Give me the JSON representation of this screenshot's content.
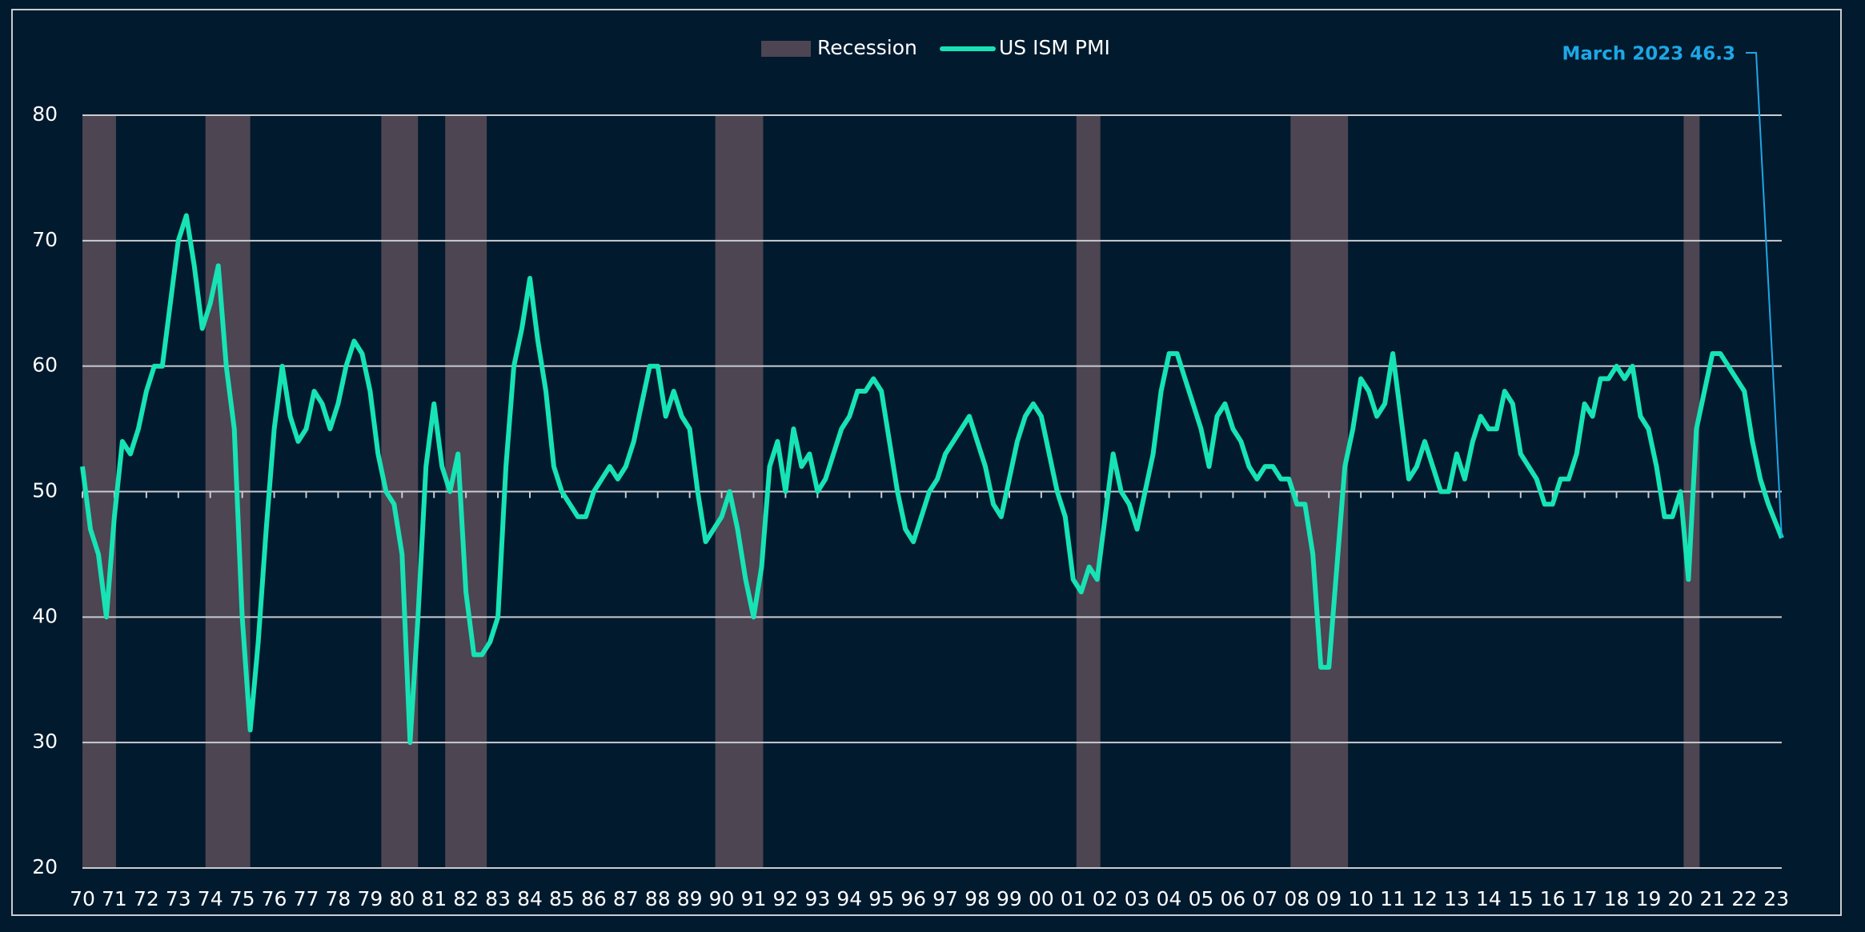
{
  "chart_data": {
    "type": "line",
    "legend_position": "top",
    "recession": {
      "name": "Recession",
      "color": "#4d4552",
      "periods": [
        [
          1970.0,
          1971.05
        ],
        [
          1973.85,
          1975.25
        ],
        [
          1979.35,
          1980.5
        ],
        [
          1981.35,
          1982.65
        ],
        [
          1989.8,
          1991.3
        ],
        [
          2001.1,
          2001.85
        ],
        [
          2007.8,
          2009.6
        ],
        [
          2020.1,
          2020.6
        ]
      ]
    },
    "annotation": {
      "text": "March 2023 46.3",
      "color": "#1ea7e6"
    },
    "x": [
      1970,
      1970.25,
      1970.5,
      1970.75,
      1971,
      1971.25,
      1971.5,
      1971.75,
      1972,
      1972.25,
      1972.5,
      1972.75,
      1973,
      1973.25,
      1973.5,
      1973.75,
      1974,
      1974.25,
      1974.5,
      1974.75,
      1975,
      1975.25,
      1975.5,
      1975.75,
      1976,
      1976.25,
      1976.5,
      1976.75,
      1977,
      1977.25,
      1977.5,
      1977.75,
      1978,
      1978.25,
      1978.5,
      1978.75,
      1979,
      1979.25,
      1979.5,
      1979.75,
      1980,
      1980.25,
      1980.5,
      1980.75,
      1981,
      1981.25,
      1981.5,
      1981.75,
      1982,
      1982.25,
      1982.5,
      1982.75,
      1983,
      1983.25,
      1983.5,
      1983.75,
      1984,
      1984.25,
      1984.5,
      1984.75,
      1985,
      1985.25,
      1985.5,
      1985.75,
      1986,
      1986.25,
      1986.5,
      1986.75,
      1987,
      1987.25,
      1987.5,
      1987.75,
      1988,
      1988.25,
      1988.5,
      1988.75,
      1989,
      1989.25,
      1989.5,
      1989.75,
      1990,
      1990.25,
      1990.5,
      1990.75,
      1991,
      1991.25,
      1991.5,
      1991.75,
      1992,
      1992.25,
      1992.5,
      1992.75,
      1993,
      1993.25,
      1993.5,
      1993.75,
      1994,
      1994.25,
      1994.5,
      1994.75,
      1995,
      1995.25,
      1995.5,
      1995.75,
      1996,
      1996.25,
      1996.5,
      1996.75,
      1997,
      1997.25,
      1997.5,
      1997.75,
      1998,
      1998.25,
      1998.5,
      1998.75,
      1999,
      1999.25,
      1999.5,
      1999.75,
      2000,
      2000.25,
      2000.5,
      2000.75,
      2001,
      2001.25,
      2001.5,
      2001.75,
      2002,
      2002.25,
      2002.5,
      2002.75,
      2003,
      2003.25,
      2003.5,
      2003.75,
      2004,
      2004.25,
      2004.5,
      2004.75,
      2005,
      2005.25,
      2005.5,
      2005.75,
      2006,
      2006.25,
      2006.5,
      2006.75,
      2007,
      2007.25,
      2007.5,
      2007.75,
      2008,
      2008.25,
      2008.5,
      2008.75,
      2009,
      2009.25,
      2009.5,
      2009.75,
      2010,
      2010.25,
      2010.5,
      2010.75,
      2011,
      2011.25,
      2011.5,
      2011.75,
      2012,
      2012.25,
      2012.5,
      2012.75,
      2013,
      2013.25,
      2013.5,
      2013.75,
      2014,
      2014.25,
      2014.5,
      2014.75,
      2015,
      2015.25,
      2015.5,
      2015.75,
      2016,
      2016.25,
      2016.5,
      2016.75,
      2017,
      2017.25,
      2017.5,
      2017.75,
      2018,
      2018.25,
      2018.5,
      2018.75,
      2019,
      2019.25,
      2019.5,
      2019.75,
      2020,
      2020.25,
      2020.5,
      2020.75,
      2021,
      2021.25,
      2021.5,
      2021.75,
      2022,
      2022.25,
      2022.5,
      2022.75,
      2023,
      2023.17
    ],
    "series": [
      {
        "name": "US ISM PMI",
        "color": "#17e3b5",
        "values": [
          52,
          47,
          45,
          40,
          48,
          54,
          53,
          55,
          58,
          60,
          60,
          65,
          70,
          72,
          68,
          63,
          65,
          68,
          60,
          55,
          40,
          31,
          38,
          47,
          55,
          60,
          56,
          54,
          55,
          58,
          57,
          55,
          57,
          60,
          62,
          61,
          58,
          53,
          50,
          49,
          45,
          30,
          40,
          52,
          57,
          52,
          50,
          53,
          42,
          37,
          37,
          38,
          40,
          52,
          60,
          63,
          67,
          62,
          58,
          52,
          50,
          49,
          48,
          48,
          50,
          51,
          52,
          51,
          52,
          54,
          57,
          60,
          60,
          56,
          58,
          56,
          55,
          50,
          46,
          47,
          48,
          50,
          47,
          43,
          40,
          44,
          52,
          54,
          50,
          55,
          52,
          53,
          50,
          51,
          53,
          55,
          56,
          58,
          58,
          59,
          58,
          54,
          50,
          47,
          46,
          48,
          50,
          51,
          53,
          54,
          55,
          56,
          54,
          52,
          49,
          48,
          51,
          54,
          56,
          57,
          56,
          53,
          50,
          48,
          43,
          42,
          44,
          43,
          48,
          53,
          50,
          49,
          47,
          50,
          53,
          58,
          61,
          61,
          59,
          57,
          55,
          52,
          56,
          57,
          55,
          54,
          52,
          51,
          52,
          52,
          51,
          51,
          49,
          49,
          45,
          36,
          36,
          44,
          52,
          55,
          59,
          58,
          56,
          57,
          61,
          56,
          51,
          52,
          54,
          52,
          50,
          50,
          53,
          51,
          54,
          56,
          55,
          55,
          58,
          57,
          53,
          52,
          51,
          49,
          49,
          51,
          51,
          53,
          57,
          56,
          59,
          59,
          60,
          59,
          60,
          56,
          55,
          52,
          48,
          48,
          50,
          43,
          55,
          58,
          61,
          61,
          60,
          59,
          58,
          54,
          51,
          49,
          47.4,
          46.3
        ]
      }
    ],
    "xlim": [
      1970,
      2023.17
    ],
    "xticks": [
      {
        "value": 1970,
        "label": "70"
      },
      {
        "value": 1971,
        "label": "71"
      },
      {
        "value": 1972,
        "label": "72"
      },
      {
        "value": 1973,
        "label": "73"
      },
      {
        "value": 1974,
        "label": "74"
      },
      {
        "value": 1975,
        "label": "75"
      },
      {
        "value": 1976,
        "label": "76"
      },
      {
        "value": 1977,
        "label": "77"
      },
      {
        "value": 1978,
        "label": "78"
      },
      {
        "value": 1979,
        "label": "79"
      },
      {
        "value": 1980,
        "label": "80"
      },
      {
        "value": 1981,
        "label": "81"
      },
      {
        "value": 1982,
        "label": "82"
      },
      {
        "value": 1983,
        "label": "83"
      },
      {
        "value": 1984,
        "label": "84"
      },
      {
        "value": 1985,
        "label": "85"
      },
      {
        "value": 1986,
        "label": "86"
      },
      {
        "value": 1987,
        "label": "87"
      },
      {
        "value": 1988,
        "label": "88"
      },
      {
        "value": 1989,
        "label": "89"
      },
      {
        "value": 1990,
        "label": "90"
      },
      {
        "value": 1991,
        "label": "91"
      },
      {
        "value": 1992,
        "label": "92"
      },
      {
        "value": 1993,
        "label": "93"
      },
      {
        "value": 1994,
        "label": "94"
      },
      {
        "value": 1995,
        "label": "95"
      },
      {
        "value": 1996,
        "label": "96"
      },
      {
        "value": 1997,
        "label": "97"
      },
      {
        "value": 1998,
        "label": "98"
      },
      {
        "value": 1999,
        "label": "99"
      },
      {
        "value": 2000,
        "label": "00"
      },
      {
        "value": 2001,
        "label": "01"
      },
      {
        "value": 2002,
        "label": "02"
      },
      {
        "value": 2003,
        "label": "03"
      },
      {
        "value": 2004,
        "label": "04"
      },
      {
        "value": 2005,
        "label": "05"
      },
      {
        "value": 2006,
        "label": "06"
      },
      {
        "value": 2007,
        "label": "07"
      },
      {
        "value": 2008,
        "label": "08"
      },
      {
        "value": 2009,
        "label": "09"
      },
      {
        "value": 2010,
        "label": "10"
      },
      {
        "value": 2011,
        "label": "11"
      },
      {
        "value": 2012,
        "label": "12"
      },
      {
        "value": 2013,
        "label": "13"
      },
      {
        "value": 2014,
        "label": "14"
      },
      {
        "value": 2015,
        "label": "15"
      },
      {
        "value": 2016,
        "label": "16"
      },
      {
        "value": 2017,
        "label": "17"
      },
      {
        "value": 2018,
        "label": "18"
      },
      {
        "value": 2019,
        "label": "19"
      },
      {
        "value": 2020,
        "label": "20"
      },
      {
        "value": 2021,
        "label": "21"
      },
      {
        "value": 2022,
        "label": "22"
      },
      {
        "value": 2023,
        "label": "23"
      }
    ],
    "ylim": [
      20,
      80
    ],
    "yticks": [
      20,
      30,
      40,
      50,
      60,
      70,
      80
    ],
    "grid": true
  }
}
